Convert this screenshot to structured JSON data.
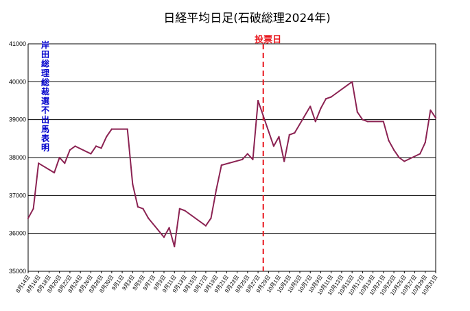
{
  "chart_data": {
    "type": "line",
    "title": "日経平均日足(石破総理2024年)",
    "ylim": [
      35000,
      41000
    ],
    "yticks": [
      35000,
      36000,
      37000,
      38000,
      39000,
      40000,
      41000
    ],
    "grid": "horizontal",
    "line_color": "#8b2252",
    "x_tick_labels": [
      "8月14日",
      "8月16日",
      "8月18日",
      "8月20日",
      "8月22日",
      "8月24日",
      "8月26日",
      "8月28日",
      "8月30日",
      "9月1日",
      "9月3日",
      "9月5日",
      "9月7日",
      "9月9日",
      "9月11日",
      "9月13日",
      "9月15日",
      "9月17日",
      "9月19日",
      "9月21日",
      "9月23日",
      "9月25日",
      "9月27日",
      "9月29日",
      "10月1日",
      "10月3日",
      "10月5日",
      "10月7日",
      "10月9日",
      "10月11日",
      "10月13日",
      "10月15日",
      "10月17日",
      "10月19日",
      "10月21日",
      "10月23日",
      "10月25日",
      "10月27日",
      "10月29日",
      "10月31日"
    ],
    "series": [
      {
        "x": [
          "2024-08-14",
          "2024-08-15",
          "2024-08-16",
          "2024-08-19",
          "2024-08-20",
          "2024-08-21",
          "2024-08-22",
          "2024-08-23",
          "2024-08-26",
          "2024-08-27",
          "2024-08-28",
          "2024-08-29",
          "2024-08-30",
          "2024-09-02",
          "2024-09-03",
          "2024-09-04",
          "2024-09-05",
          "2024-09-06",
          "2024-09-09",
          "2024-09-10",
          "2024-09-11",
          "2024-09-12",
          "2024-09-13",
          "2024-09-17",
          "2024-09-18",
          "2024-09-19",
          "2024-09-20",
          "2024-09-24",
          "2024-09-25",
          "2024-09-26",
          "2024-09-27",
          "2024-09-30",
          "2024-10-01",
          "2024-10-02",
          "2024-10-03",
          "2024-10-04",
          "2024-10-07",
          "2024-10-08",
          "2024-10-09",
          "2024-10-10",
          "2024-10-11",
          "2024-10-15",
          "2024-10-16",
          "2024-10-17",
          "2024-10-18",
          "2024-10-21",
          "2024-10-22",
          "2024-10-23",
          "2024-10-24",
          "2024-10-25",
          "2024-10-28",
          "2024-10-29",
          "2024-10-30",
          "2024-10-31"
        ],
        "y": [
          36400,
          36650,
          37850,
          37600,
          38000,
          37850,
          38200,
          38300,
          38100,
          38300,
          38250,
          38550,
          38750,
          38750,
          37300,
          36700,
          36650,
          36400,
          35900,
          36150,
          35650,
          36650,
          36600,
          36200,
          36400,
          37150,
          37800,
          37950,
          38100,
          37950,
          39500,
          38300,
          38550,
          37900,
          38600,
          38650,
          39350,
          38950,
          39300,
          39550,
          39600,
          40000,
          39200,
          39000,
          38950,
          38950,
          38450,
          38200,
          38000,
          37900,
          38100,
          38400,
          39250,
          39050
        ]
      }
    ],
    "annotations": {
      "vertical_text": [
        "岸",
        "田",
        "総",
        "理",
        "総",
        "裁",
        "選",
        "不",
        "出",
        "馬",
        "表",
        "明"
      ],
      "marker_label": "投票日",
      "marker_x": "2024-09-28"
    }
  }
}
